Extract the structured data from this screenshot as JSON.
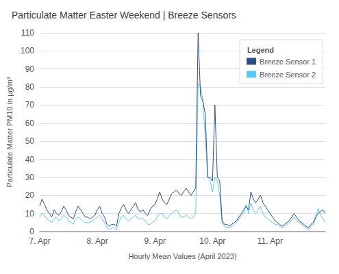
{
  "chart_data": {
    "type": "line",
    "title": "Particulate Matter Easter Weekend | Breeze Sensors",
    "xlabel": "Hourly Mean Values (April 2023)",
    "ylabel": "Particulate Matter PM10 in µg/m³",
    "legend_title": "Legend",
    "legend": "upper right",
    "grid": true,
    "ylim": [
      0,
      110
    ],
    "yticks": [
      0,
      10,
      20,
      30,
      40,
      50,
      60,
      70,
      80,
      90,
      100,
      110
    ],
    "categories": [
      "7. Apr",
      null,
      null,
      null,
      null,
      null,
      null,
      null,
      null,
      null,
      null,
      null,
      null,
      null,
      null,
      null,
      null,
      null,
      null,
      null,
      null,
      null,
      null,
      null,
      "8. Apr",
      null,
      null,
      null,
      null,
      null,
      null,
      null,
      null,
      null,
      null,
      null,
      null,
      null,
      null,
      null,
      null,
      null,
      null,
      null,
      null,
      null,
      null,
      null,
      "9. Apr",
      null,
      null,
      null,
      null,
      null,
      null,
      null,
      null,
      null,
      null,
      null,
      null,
      null,
      null,
      null,
      null,
      null,
      null,
      null,
      null,
      null,
      null,
      null,
      "10. Apr",
      null,
      null,
      null,
      null,
      null,
      null,
      null,
      null,
      null,
      null,
      null,
      null,
      null,
      null,
      null,
      null,
      null,
      null,
      null,
      null,
      null,
      null,
      null,
      "11. Apr",
      null,
      null,
      null,
      null,
      null,
      null,
      null,
      null,
      null,
      null,
      null,
      null,
      null,
      null,
      null,
      null,
      null,
      null,
      null,
      null,
      null,
      null,
      null
    ],
    "series": [
      {
        "name": "Breeze Sensor 1",
        "color": "#2b4d80",
        "values": [
          14,
          18,
          15,
          12,
          10,
          8,
          12,
          10,
          9,
          11,
          14,
          12,
          9,
          8,
          7,
          11,
          14,
          12,
          10,
          8,
          8,
          7,
          8,
          9,
          12,
          14,
          10,
          8,
          4,
          3,
          4,
          4,
          3,
          10,
          13,
          15,
          12,
          10,
          12,
          14,
          16,
          12,
          11,
          12,
          10,
          9,
          12,
          14,
          15,
          18,
          22,
          18,
          16,
          15,
          18,
          21,
          22,
          23,
          21,
          20,
          22,
          24,
          22,
          20,
          22,
          24,
          110,
          75,
          72,
          65,
          30,
          30,
          28,
          70,
          30,
          28,
          6,
          4,
          4,
          3,
          4,
          5,
          6,
          8,
          10,
          12,
          14,
          12,
          22,
          18,
          16,
          18,
          20,
          16,
          14,
          12,
          10,
          8,
          6,
          5,
          4,
          3,
          4,
          5,
          6,
          8,
          10,
          8,
          6,
          5,
          4,
          3,
          2,
          4,
          5,
          8,
          10,
          11,
          12,
          10
        ]
      },
      {
        "name": "Breeze Sensor 2",
        "color": "#5bc8f5",
        "values": [
          8,
          10,
          9,
          7,
          6,
          5,
          7,
          8,
          6,
          7,
          9,
          8,
          6,
          5,
          4,
          7,
          8,
          7,
          6,
          5,
          5,
          5,
          6,
          7,
          8,
          9,
          7,
          5,
          2,
          1,
          2,
          2,
          1,
          5,
          8,
          9,
          7,
          6,
          7,
          8,
          9,
          7,
          7,
          7,
          6,
          4,
          4,
          5,
          6,
          8,
          10,
          10,
          8,
          7,
          9,
          10,
          11,
          12,
          10,
          8,
          8,
          9,
          8,
          7,
          8,
          10,
          82,
          80,
          73,
          52,
          30,
          28,
          22,
          30,
          28,
          20,
          5,
          3,
          2,
          2,
          3,
          4,
          5,
          7,
          9,
          10,
          15,
          10,
          16,
          12,
          10,
          12,
          14,
          10,
          8,
          7,
          6,
          5,
          4,
          4,
          3,
          2,
          3,
          4,
          5,
          6,
          8,
          6,
          5,
          4,
          3,
          2,
          1,
          3,
          4,
          7,
          13,
          9,
          7,
          5
        ]
      }
    ]
  }
}
